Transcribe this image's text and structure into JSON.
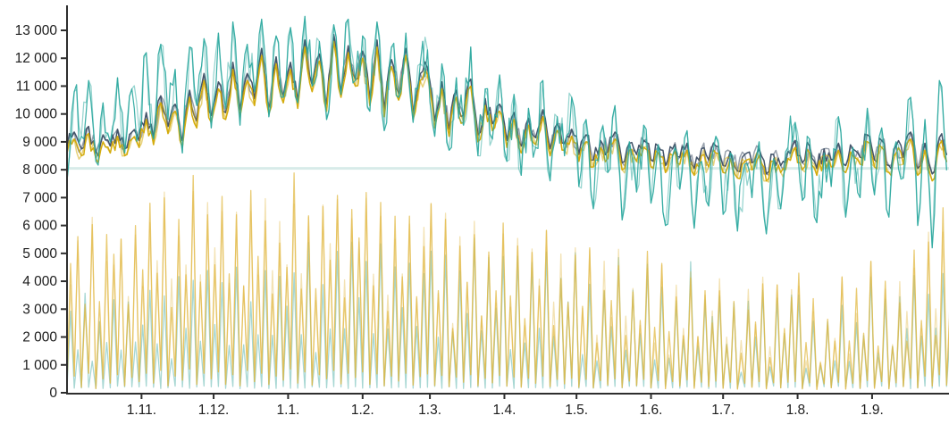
{
  "chart_data": {
    "type": "line",
    "title": "",
    "background": "#ffffff",
    "axis_color": "#2e2e2e",
    "text_color": "#1c1c1c",
    "x_axis": {
      "tick_labels": [
        "1.11.",
        "1.12.",
        "1.1.",
        "1.2.",
        "1.3.",
        "1.4.",
        "1.5.",
        "1.6.",
        "1.7.",
        "1.8.",
        "1.9."
      ],
      "tick_day_offsets": [
        31,
        61,
        92,
        123,
        151,
        182,
        212,
        243,
        273,
        304,
        335
      ],
      "span_days": 367,
      "sample_step_days": 3
    },
    "y_axis": {
      "tick_values": [
        0,
        1000,
        2000,
        3000,
        4000,
        5000,
        6000,
        7000,
        8000,
        9000,
        10000,
        11000,
        12000,
        13000
      ],
      "tick_labels": [
        "0",
        "1 000",
        "2 000",
        "3 000",
        "4 000",
        "5 000",
        "6 000",
        "7 000",
        "8 000",
        "9 000",
        "10 000",
        "11 000",
        "12 000",
        "13 000"
      ],
      "range": [
        0,
        13600
      ]
    },
    "reference_line": {
      "value": 8050,
      "color": "#d2e8e6"
    },
    "series": [
      {
        "name": "teal-lower-daily",
        "style": "daily-range",
        "color": "#4fb0a8",
        "opacity": 0.5,
        "jitter": 500,
        "seeds": [
          5
        ],
        "low": 150,
        "peaks": [
          2800,
          1600,
          3400,
          1200,
          2600,
          2000,
          3600,
          1400,
          3000,
          1800,
          2400,
          3800,
          1800,
          3200,
          1400,
          4200,
          2200,
          3600,
          1600,
          4400,
          2600,
          4000,
          1600,
          4600,
          2000,
          3400,
          2400,
          4800,
          1800,
          3800,
          2800,
          4400,
          2000,
          5000,
          1600,
          4200,
          2600,
          4600,
          2200,
          5200,
          3000,
          4800,
          1800,
          5200,
          2200,
          4400,
          2800,
          5000,
          2000,
          4600,
          5200,
          2400,
          4800,
          1800,
          4400,
          3000,
          5400,
          2200,
          4800,
          3200,
          5000,
          2000,
          4600,
          1600,
          4200,
          2800,
          5200,
          1800,
          4400,
          3000,
          4600,
          1800,
          4200,
          1400,
          3800,
          2400,
          4800,
          1600,
          4000,
          2600,
          4200,
          1600,
          3800,
          1200,
          3400,
          2200,
          4400,
          1400,
          3600,
          2400,
          3600,
          1400,
          3200,
          1000,
          2800,
          1800,
          3800,
          1200,
          3000,
          2000,
          3400,
          3400,
          1200,
          3000,
          1000,
          2600,
          1600,
          3600,
          1100,
          2800,
          1800,
          3800,
          1400,
          3400,
          1200,
          3000,
          2000,
          4200,
          1600,
          3600,
          2200,
          4400,
          2600
        ]
      },
      {
        "name": "yellow-lower-daily",
        "style": "daily-range",
        "color": "#e0b73e",
        "opacity": 0.72,
        "jitter": 600,
        "seeds": [
          6,
          7
        ],
        "lows": [
          300,
          600,
          200,
          700,
          150,
          500,
          350,
          650,
          250,
          550,
          400,
          700,
          350,
          800,
          250,
          600,
          450,
          850,
          300,
          700,
          500,
          750,
          300,
          650,
          250,
          800,
          400,
          700,
          300,
          600,
          450,
          850,
          350,
          750,
          280,
          650,
          500,
          800,
          320,
          700,
          550,
          750,
          300,
          680,
          250,
          600,
          420,
          700,
          280,
          580,
          680,
          260,
          620,
          220,
          560,
          380,
          650,
          250,
          520,
          360,
          620,
          240,
          560,
          200,
          520,
          340,
          600,
          220,
          480,
          320,
          520,
          200,
          480,
          180,
          440,
          280,
          500,
          190,
          420,
          260,
          480,
          180,
          440,
          150,
          400,
          240,
          460,
          160,
          380,
          220,
          420,
          160,
          380,
          130,
          340,
          200,
          400,
          140,
          360,
          180,
          380,
          400,
          140,
          360,
          120,
          320,
          180,
          380,
          130,
          340,
          160,
          440,
          160,
          400,
          140,
          360,
          220,
          520,
          180,
          600,
          240,
          650,
          280
        ],
        "peaks": [
          4200,
          5800,
          3600,
          6200,
          3000,
          5200,
          4400,
          6000,
          3400,
          5500,
          4000,
          6600,
          4200,
          7000,
          3600,
          5800,
          4600,
          7200,
          3800,
          6400,
          5000,
          6800,
          4000,
          6200,
          3400,
          7000,
          4400,
          6600,
          3800,
          5800,
          4600,
          7300,
          4200,
          6800,
          3600,
          6200,
          4800,
          7100,
          3900,
          6600,
          5200,
          6800,
          3800,
          6400,
          3200,
          5800,
          4400,
          6600,
          3600,
          5600,
          6400,
          3400,
          6000,
          2800,
          5400,
          4000,
          6200,
          3200,
          5000,
          3800,
          6000,
          3000,
          5400,
          2600,
          5000,
          3600,
          5800,
          2800,
          4600,
          3400,
          5000,
          2600,
          4600,
          2200,
          4200,
          3000,
          4800,
          2400,
          4000,
          2800,
          4800,
          2200,
          4200,
          1800,
          3800,
          2600,
          4400,
          2000,
          3600,
          2400,
          4000,
          1800,
          3600,
          1500,
          3200,
          2200,
          3800,
          1600,
          3400,
          2000,
          3600,
          3800,
          1600,
          3400,
          1400,
          3000,
          2000,
          3600,
          1500,
          3200,
          1800,
          4200,
          1800,
          3800,
          1600,
          3400,
          2400,
          5000,
          2000,
          5800,
          2600,
          6300,
          3000
        ]
      },
      {
        "name": "dark-blue-line",
        "style": "line",
        "color": "#44546a",
        "width": 1.5,
        "opacity": 1,
        "jitter": 350,
        "seeds": [
          3,
          4
        ],
        "values": [
          8850,
          9350,
          8750,
          9550,
          8650,
          9250,
          8850,
          9450,
          8750,
          9350,
          9050,
          10050,
          9150,
          10650,
          9550,
          10350,
          9050,
          10850,
          9750,
          11450,
          9950,
          11150,
          10050,
          11850,
          10150,
          11450,
          10550,
          12350,
          10250,
          12050,
          10650,
          11850,
          10450,
          12650,
          11050,
          12150,
          10350,
          12850,
          10850,
          12450,
          11250,
          12250,
          10550,
          12650,
          10150,
          11950,
          10750,
          12350,
          10050,
          11450,
          11650,
          9750,
          11150,
          9450,
          10850,
          9950,
          11250,
          9250,
          10550,
          9650,
          10350,
          9050,
          10050,
          8850,
          9850,
          9150,
          10150,
          8750,
          9650,
          8950,
          9450,
          8550,
          9250,
          8350,
          9050,
          8650,
          9350,
          8250,
          8950,
          8550,
          9050,
          8350,
          8850,
          8150,
          8750,
          8450,
          8950,
          8050,
          8750,
          8350,
          8850,
          8150,
          8650,
          7950,
          8550,
          8250,
          8750,
          7850,
          8550,
          8150,
          8650,
          9050,
          8250,
          8850,
          8050,
          8750,
          8350,
          8950,
          8150,
          8750,
          8450,
          9250,
          8350,
          9050,
          8150,
          8850,
          8450,
          9350,
          8050,
          8950,
          7850,
          9150,
          8550
        ]
      },
      {
        "name": "yellow-line",
        "style": "line",
        "color": "#d4ac0d",
        "width": 1.5,
        "opacity": 1,
        "jitter": 350,
        "seeds": [
          3,
          4
        ],
        "values": [
          8600,
          9100,
          8500,
          9300,
          8400,
          9000,
          8600,
          9200,
          8500,
          9100,
          8800,
          9800,
          8900,
          10400,
          9300,
          10100,
          8800,
          10600,
          9500,
          11200,
          9700,
          10900,
          9800,
          11600,
          9900,
          11200,
          10300,
          12100,
          10000,
          11800,
          10400,
          11600,
          10200,
          12400,
          10800,
          11900,
          10100,
          12600,
          10600,
          12200,
          11000,
          12000,
          10300,
          12400,
          9900,
          11700,
          10500,
          12100,
          9800,
          11200,
          11400,
          9500,
          10900,
          9200,
          10600,
          9700,
          11000,
          9000,
          10300,
          9400,
          10100,
          8800,
          9800,
          8600,
          9600,
          8900,
          9900,
          8500,
          9400,
          8700,
          9200,
          8300,
          9000,
          8100,
          8800,
          8400,
          9100,
          8000,
          8700,
          8300,
          8800,
          8100,
          8600,
          7900,
          8500,
          8200,
          8700,
          7800,
          8500,
          8100,
          8600,
          7900,
          8400,
          7700,
          8300,
          8000,
          8500,
          7600,
          8300,
          7900,
          8400,
          8800,
          8000,
          8600,
          7800,
          8500,
          8100,
          8700,
          7900,
          8500,
          8200,
          9000,
          8100,
          8800,
          7900,
          8600,
          8200,
          9100,
          7800,
          8700,
          7600,
          8900,
          8300
        ]
      },
      {
        "name": "teal-line",
        "style": "line",
        "color": "#2aa79e",
        "width": 1.25,
        "opacity": 0.9,
        "jitter": 900,
        "seeds": [
          1,
          2
        ],
        "values": [
          7600,
          10800,
          9200,
          11200,
          8300,
          10400,
          9000,
          11300,
          8600,
          10900,
          9400,
          12200,
          9100,
          12500,
          9800,
          11600,
          8600,
          12400,
          10300,
          12700,
          9500,
          12900,
          10200,
          13300,
          9600,
          12500,
          10800,
          13400,
          9900,
          12800,
          10600,
          13100,
          10400,
          13500,
          11000,
          12600,
          9800,
          13200,
          10700,
          13400,
          11200,
          12800,
          10100,
          13300,
          9400,
          12400,
          10600,
          12900,
          9700,
          11800,
          12300,
          9200,
          11800,
          8700,
          11300,
          9600,
          12400,
          8500,
          10900,
          9100,
          11400,
          8300,
          10700,
          7800,
          10200,
          8800,
          11200,
          7600,
          9900,
          8500,
          10600,
          7400,
          9800,
          6600,
          9300,
          7900,
          10300,
          6200,
          9000,
          7200,
          9600,
          6800,
          8900,
          6000,
          8500,
          7300,
          9400,
          5900,
          8300,
          6700,
          9200,
          6400,
          8600,
          5800,
          8200,
          7000,
          9000,
          5700,
          8400,
          6600,
          8800,
          9700,
          6900,
          9100,
          6100,
          8600,
          7400,
          9900,
          6300,
          8800,
          7000,
          10200,
          7100,
          9500,
          6300,
          9000,
          7700,
          10600,
          6000,
          9800,
          5200,
          11200,
          8000
        ]
      }
    ]
  }
}
